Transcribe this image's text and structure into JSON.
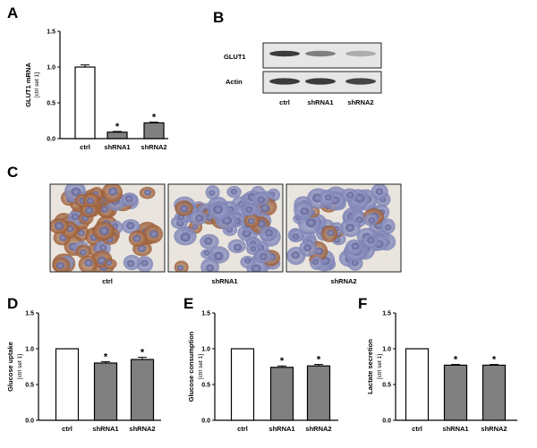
{
  "figure": {
    "panel_letters": [
      "A",
      "B",
      "C",
      "D",
      "E",
      "F"
    ],
    "star": "*"
  },
  "chart_data": [
    {
      "panel": "A",
      "type": "bar",
      "ylabel": "GLUT1 mRNA",
      "ylabel2": "[ctrl set 1]",
      "ylim": [
        0,
        1.5
      ],
      "yticks": [
        "0.0",
        "0.5",
        "1.0",
        "1.5"
      ],
      "categories": [
        "ctrl",
        "shRNA1",
        "shRNA2"
      ],
      "values": [
        1.0,
        0.09,
        0.22
      ],
      "errors": [
        0.03,
        0.01,
        0.01
      ],
      "significant": [
        false,
        true,
        true
      ],
      "colors": [
        "#ffffff",
        "#808080",
        "#808080"
      ]
    },
    {
      "panel": "D",
      "type": "bar",
      "ylabel": "Glucose uptake",
      "ylabel2": "[ctrl set 1]",
      "ylim": [
        0,
        1.5
      ],
      "yticks": [
        "0.0",
        "0.5",
        "1.0",
        "1.5"
      ],
      "categories": [
        "ctrl",
        "shRNA1",
        "shRNA2"
      ],
      "values": [
        1.0,
        0.8,
        0.85
      ],
      "errors": [
        0.0,
        0.02,
        0.03
      ],
      "significant": [
        false,
        true,
        true
      ],
      "colors": [
        "#ffffff",
        "#808080",
        "#808080"
      ]
    },
    {
      "panel": "E",
      "type": "bar",
      "ylabel": "Glucose consumption",
      "ylabel2": "[ctrl set 1]",
      "ylim": [
        0,
        1.5
      ],
      "yticks": [
        "0.0",
        "0.5",
        "1.0",
        "1.5"
      ],
      "categories": [
        "ctrl",
        "shRNA1",
        "shRNA2"
      ],
      "values": [
        1.0,
        0.74,
        0.76
      ],
      "errors": [
        0.0,
        0.02,
        0.02
      ],
      "significant": [
        false,
        true,
        true
      ],
      "colors": [
        "#ffffff",
        "#808080",
        "#808080"
      ]
    },
    {
      "panel": "F",
      "type": "bar",
      "ylabel": "Lactate secretion",
      "ylabel2": "[ctrl set 1]",
      "ylim": [
        0,
        1.5
      ],
      "yticks": [
        "0.0",
        "0.5",
        "1.0",
        "1.5"
      ],
      "categories": [
        "ctrl",
        "shRNA1",
        "shRNA2"
      ],
      "values": [
        1.0,
        0.77,
        0.77
      ],
      "errors": [
        0.0,
        0.01,
        0.01
      ],
      "significant": [
        false,
        true,
        true
      ],
      "colors": [
        "#ffffff",
        "#808080",
        "#808080"
      ]
    }
  ],
  "western_blot": {
    "rows": [
      "GLUT1",
      "Actin"
    ],
    "lanes": [
      "ctrl",
      "shRNA1",
      "shRNA2"
    ],
    "intensities": {
      "GLUT1": [
        0.9,
        0.55,
        0.3
      ],
      "Actin": [
        0.9,
        0.9,
        0.85
      ]
    }
  },
  "ihc": {
    "captions": [
      "ctrl",
      "shRNA1",
      "shRNA2"
    ]
  }
}
